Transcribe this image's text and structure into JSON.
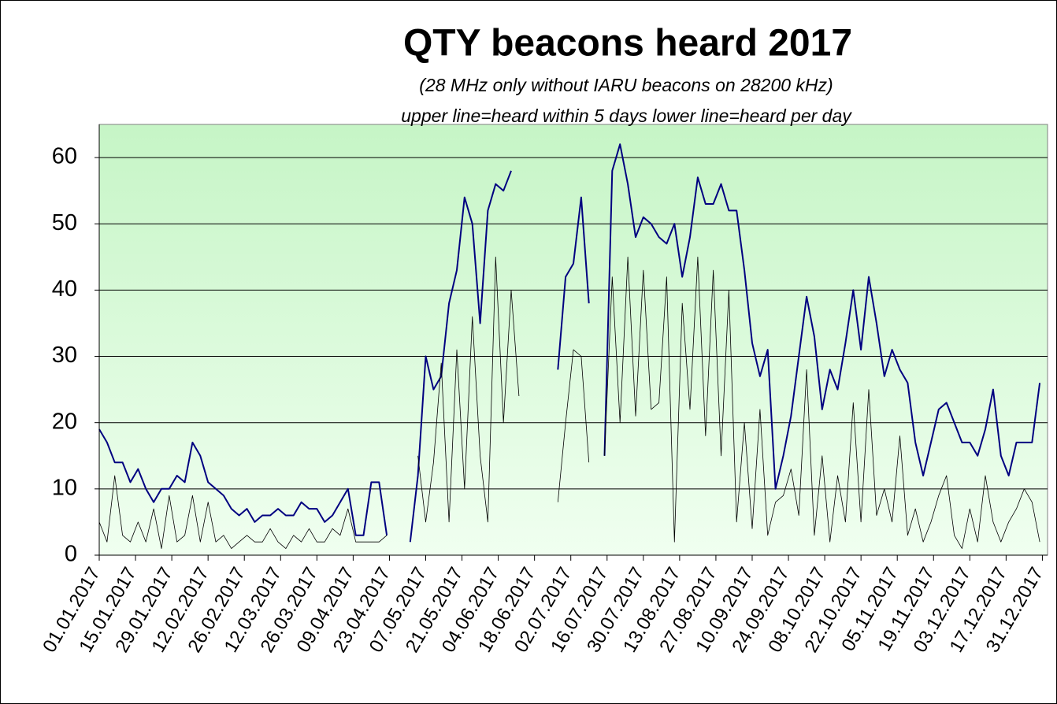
{
  "chart_data": {
    "type": "line",
    "title": "QTY beacons heard 2017",
    "subtitle": "(28 MHz only without IARU beacons on 28200 kHz)",
    "annotation": "upper line=heard within 5 days  lower line=heard per day",
    "x": [
      0,
      3,
      6,
      9,
      12,
      15,
      18,
      21,
      24,
      27,
      30,
      33,
      36,
      39,
      42,
      45,
      48,
      51,
      54,
      57,
      60,
      63,
      66,
      69,
      72,
      75,
      78,
      81,
      84,
      87,
      90,
      93,
      96,
      99,
      102,
      105,
      108,
      111,
      114,
      117,
      120,
      123,
      126,
      129,
      132,
      135,
      138,
      141,
      144,
      147,
      150,
      153,
      156,
      159,
      162,
      165,
      168,
      171,
      174,
      177,
      180,
      183,
      186,
      189,
      192,
      195,
      198,
      201,
      204,
      207,
      210,
      213,
      216,
      219,
      222,
      225,
      228,
      231,
      234,
      237,
      240,
      243,
      246,
      249,
      252,
      255,
      258,
      261,
      264,
      267,
      270,
      273,
      276,
      279,
      282,
      285,
      288,
      291,
      294,
      297,
      300,
      303,
      306,
      309,
      312,
      315,
      318,
      321,
      324,
      327,
      330,
      333,
      336,
      339,
      342,
      345,
      348,
      351,
      354,
      357,
      360,
      363
    ],
    "series": [
      {
        "color": "#000080",
        "width": 2,
        "values": [
          19,
          17,
          14,
          14,
          11,
          13,
          10,
          8,
          10,
          10,
          12,
          11,
          17,
          15,
          11,
          10,
          9,
          7,
          6,
          7,
          5,
          6,
          6,
          7,
          6,
          6,
          8,
          7,
          7,
          5,
          6,
          8,
          10,
          3,
          3,
          11,
          11,
          3,
          null,
          null,
          2,
          12,
          30,
          25,
          27,
          38,
          43,
          54,
          50,
          35,
          52,
          56,
          55,
          58,
          null,
          null,
          null,
          null,
          null,
          28,
          42,
          44,
          54,
          38,
          null,
          15,
          58,
          62,
          56,
          48,
          51,
          50,
          48,
          47,
          50,
          42,
          48,
          57,
          53,
          53,
          56,
          52,
          52,
          43,
          32,
          27,
          31,
          10,
          15,
          21,
          30,
          39,
          33,
          22,
          28,
          25,
          32,
          40,
          31,
          42,
          35,
          27,
          31,
          28,
          26,
          17,
          12,
          17,
          22,
          23,
          20,
          17,
          17,
          15,
          19,
          25,
          15,
          12,
          17,
          17,
          17,
          26
        ]
      },
      {
        "color": "#000000",
        "width": 0.8,
        "values": [
          5,
          2,
          12,
          3,
          2,
          5,
          2,
          7,
          1,
          9,
          2,
          3,
          9,
          2,
          8,
          2,
          3,
          1,
          2,
          3,
          2,
          2,
          4,
          2,
          1,
          3,
          2,
          4,
          2,
          2,
          4,
          3,
          7,
          2,
          2,
          2,
          2,
          3,
          null,
          null,
          null,
          15,
          5,
          14,
          29,
          5,
          31,
          10,
          36,
          15,
          5,
          45,
          20,
          40,
          24,
          null,
          null,
          null,
          null,
          8,
          20,
          31,
          30,
          14,
          null,
          15,
          42,
          20,
          45,
          21,
          43,
          22,
          23,
          42,
          2,
          38,
          22,
          45,
          18,
          43,
          15,
          40,
          5,
          20,
          4,
          22,
          3,
          8,
          9,
          13,
          6,
          28,
          3,
          15,
          2,
          12,
          5,
          23,
          5,
          25,
          6,
          10,
          5,
          18,
          3,
          7,
          2,
          5,
          9,
          12,
          3,
          1,
          7,
          2,
          12,
          5,
          2,
          5,
          7,
          10,
          8,
          2
        ]
      }
    ],
    "xlim": [
      0,
      366
    ],
    "xticks": [
      {
        "value": 0,
        "label": "01.01.2017"
      },
      {
        "value": 14,
        "label": "15.01.2017"
      },
      {
        "value": 28,
        "label": "29.01.2017"
      },
      {
        "value": 42,
        "label": "12.02.2017"
      },
      {
        "value": 56,
        "label": "26.02.2017"
      },
      {
        "value": 70,
        "label": "12.03.2017"
      },
      {
        "value": 84,
        "label": "26.03.2017"
      },
      {
        "value": 98,
        "label": "09.04.2017"
      },
      {
        "value": 112,
        "label": "23.04.2017"
      },
      {
        "value": 126,
        "label": "07.05.2017"
      },
      {
        "value": 140,
        "label": "21.05.2017"
      },
      {
        "value": 154,
        "label": "04.06.2017"
      },
      {
        "value": 168,
        "label": "18.06.2017"
      },
      {
        "value": 182,
        "label": "02.07.2017"
      },
      {
        "value": 196,
        "label": "16.07.2017"
      },
      {
        "value": 210,
        "label": "30.07.2017"
      },
      {
        "value": 224,
        "label": "13.08.2017"
      },
      {
        "value": 238,
        "label": "27.08.2017"
      },
      {
        "value": 252,
        "label": "10.09.2017"
      },
      {
        "value": 266,
        "label": "24.09.2017"
      },
      {
        "value": 280,
        "label": "08.10.2017"
      },
      {
        "value": 294,
        "label": "22.10.2017"
      },
      {
        "value": 308,
        "label": "05.11.2017"
      },
      {
        "value": 322,
        "label": "19.11.2017"
      },
      {
        "value": 336,
        "label": "03.12.2017"
      },
      {
        "value": 350,
        "label": "17.12.2017"
      },
      {
        "value": 364,
        "label": "31.12.2017"
      }
    ],
    "ylim": [
      0,
      65
    ],
    "yticks": [
      0,
      10,
      20,
      30,
      40,
      50,
      60
    ],
    "grid": true
  }
}
